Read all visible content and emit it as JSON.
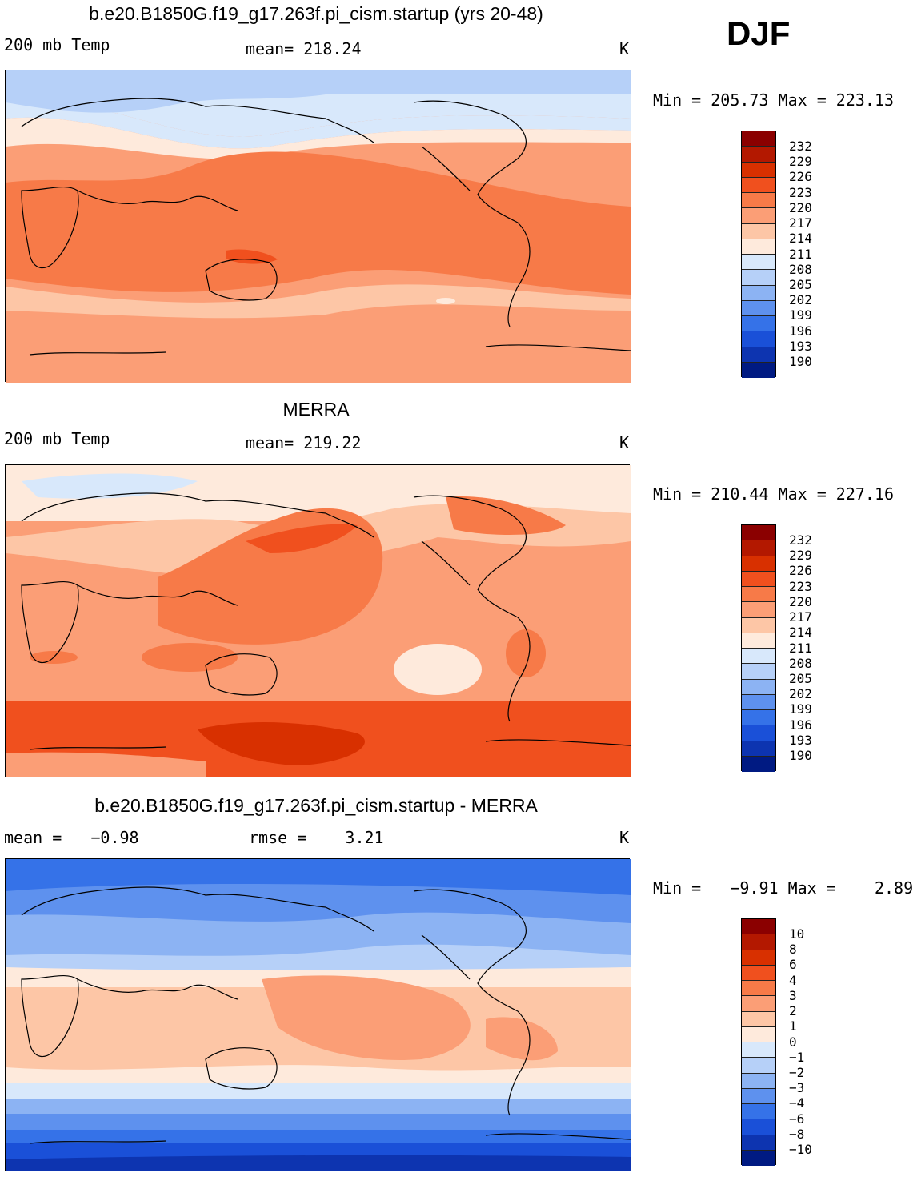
{
  "season": "DJF",
  "panels": [
    {
      "title": "b.e20.B1850G.f19_g17.263f.pi_cism.startup (yrs 20-48)",
      "left_label": "200 mb Temp",
      "center_label": "mean= 218.24",
      "units": "K",
      "minmax": "Min = 205.73 Max = 223.13",
      "colorbar": {
        "labels": [
          "232",
          "229",
          "226",
          "223",
          "220",
          "217",
          "214",
          "211",
          "208",
          "205",
          "202",
          "199",
          "196",
          "193",
          "190"
        ],
        "colors": [
          "#8b0000",
          "#b31800",
          "#d83000",
          "#f0501e",
          "#f77a48",
          "#fb9e76",
          "#fdc6a6",
          "#feeadc",
          "#d8e8fb",
          "#b6d0f8",
          "#8cb3f3",
          "#5e91ee",
          "#3572e8",
          "#1a50d8",
          "#0d34b0",
          "#001a82"
        ]
      }
    },
    {
      "title": "MERRA",
      "left_label": "200 mb Temp",
      "center_label": "mean= 219.22",
      "units": "K",
      "minmax": "Min = 210.44 Max = 227.16",
      "colorbar": {
        "labels": [
          "232",
          "229",
          "226",
          "223",
          "220",
          "217",
          "214",
          "211",
          "208",
          "205",
          "202",
          "199",
          "196",
          "193",
          "190"
        ],
        "colors": [
          "#8b0000",
          "#b31800",
          "#d83000",
          "#f0501e",
          "#f77a48",
          "#fb9e76",
          "#fdc6a6",
          "#feeadc",
          "#d8e8fb",
          "#b6d0f8",
          "#8cb3f3",
          "#5e91ee",
          "#3572e8",
          "#1a50d8",
          "#0d34b0",
          "#001a82"
        ]
      }
    },
    {
      "title": "b.e20.B1850G.f19_g17.263f.pi_cism.startup - MERRA",
      "left_label": "mean =   −0.98",
      "center_label": "rmse =    3.21",
      "units": "K",
      "minmax": "Min =   −9.91 Max =    2.89",
      "colorbar": {
        "labels": [
          "10",
          "8",
          "6",
          "4",
          "3",
          "2",
          "1",
          "0",
          "−1",
          "−2",
          "−3",
          "−4",
          "−6",
          "−8",
          "−10"
        ],
        "colors": [
          "#8b0000",
          "#b31800",
          "#d83000",
          "#f0501e",
          "#f77a48",
          "#fb9e76",
          "#fdc6a6",
          "#feeadc",
          "#d8e8fb",
          "#b6d0f8",
          "#8cb3f3",
          "#5e91ee",
          "#3572e8",
          "#1a50d8",
          "#0d34b0",
          "#001a82"
        ]
      }
    }
  ]
}
